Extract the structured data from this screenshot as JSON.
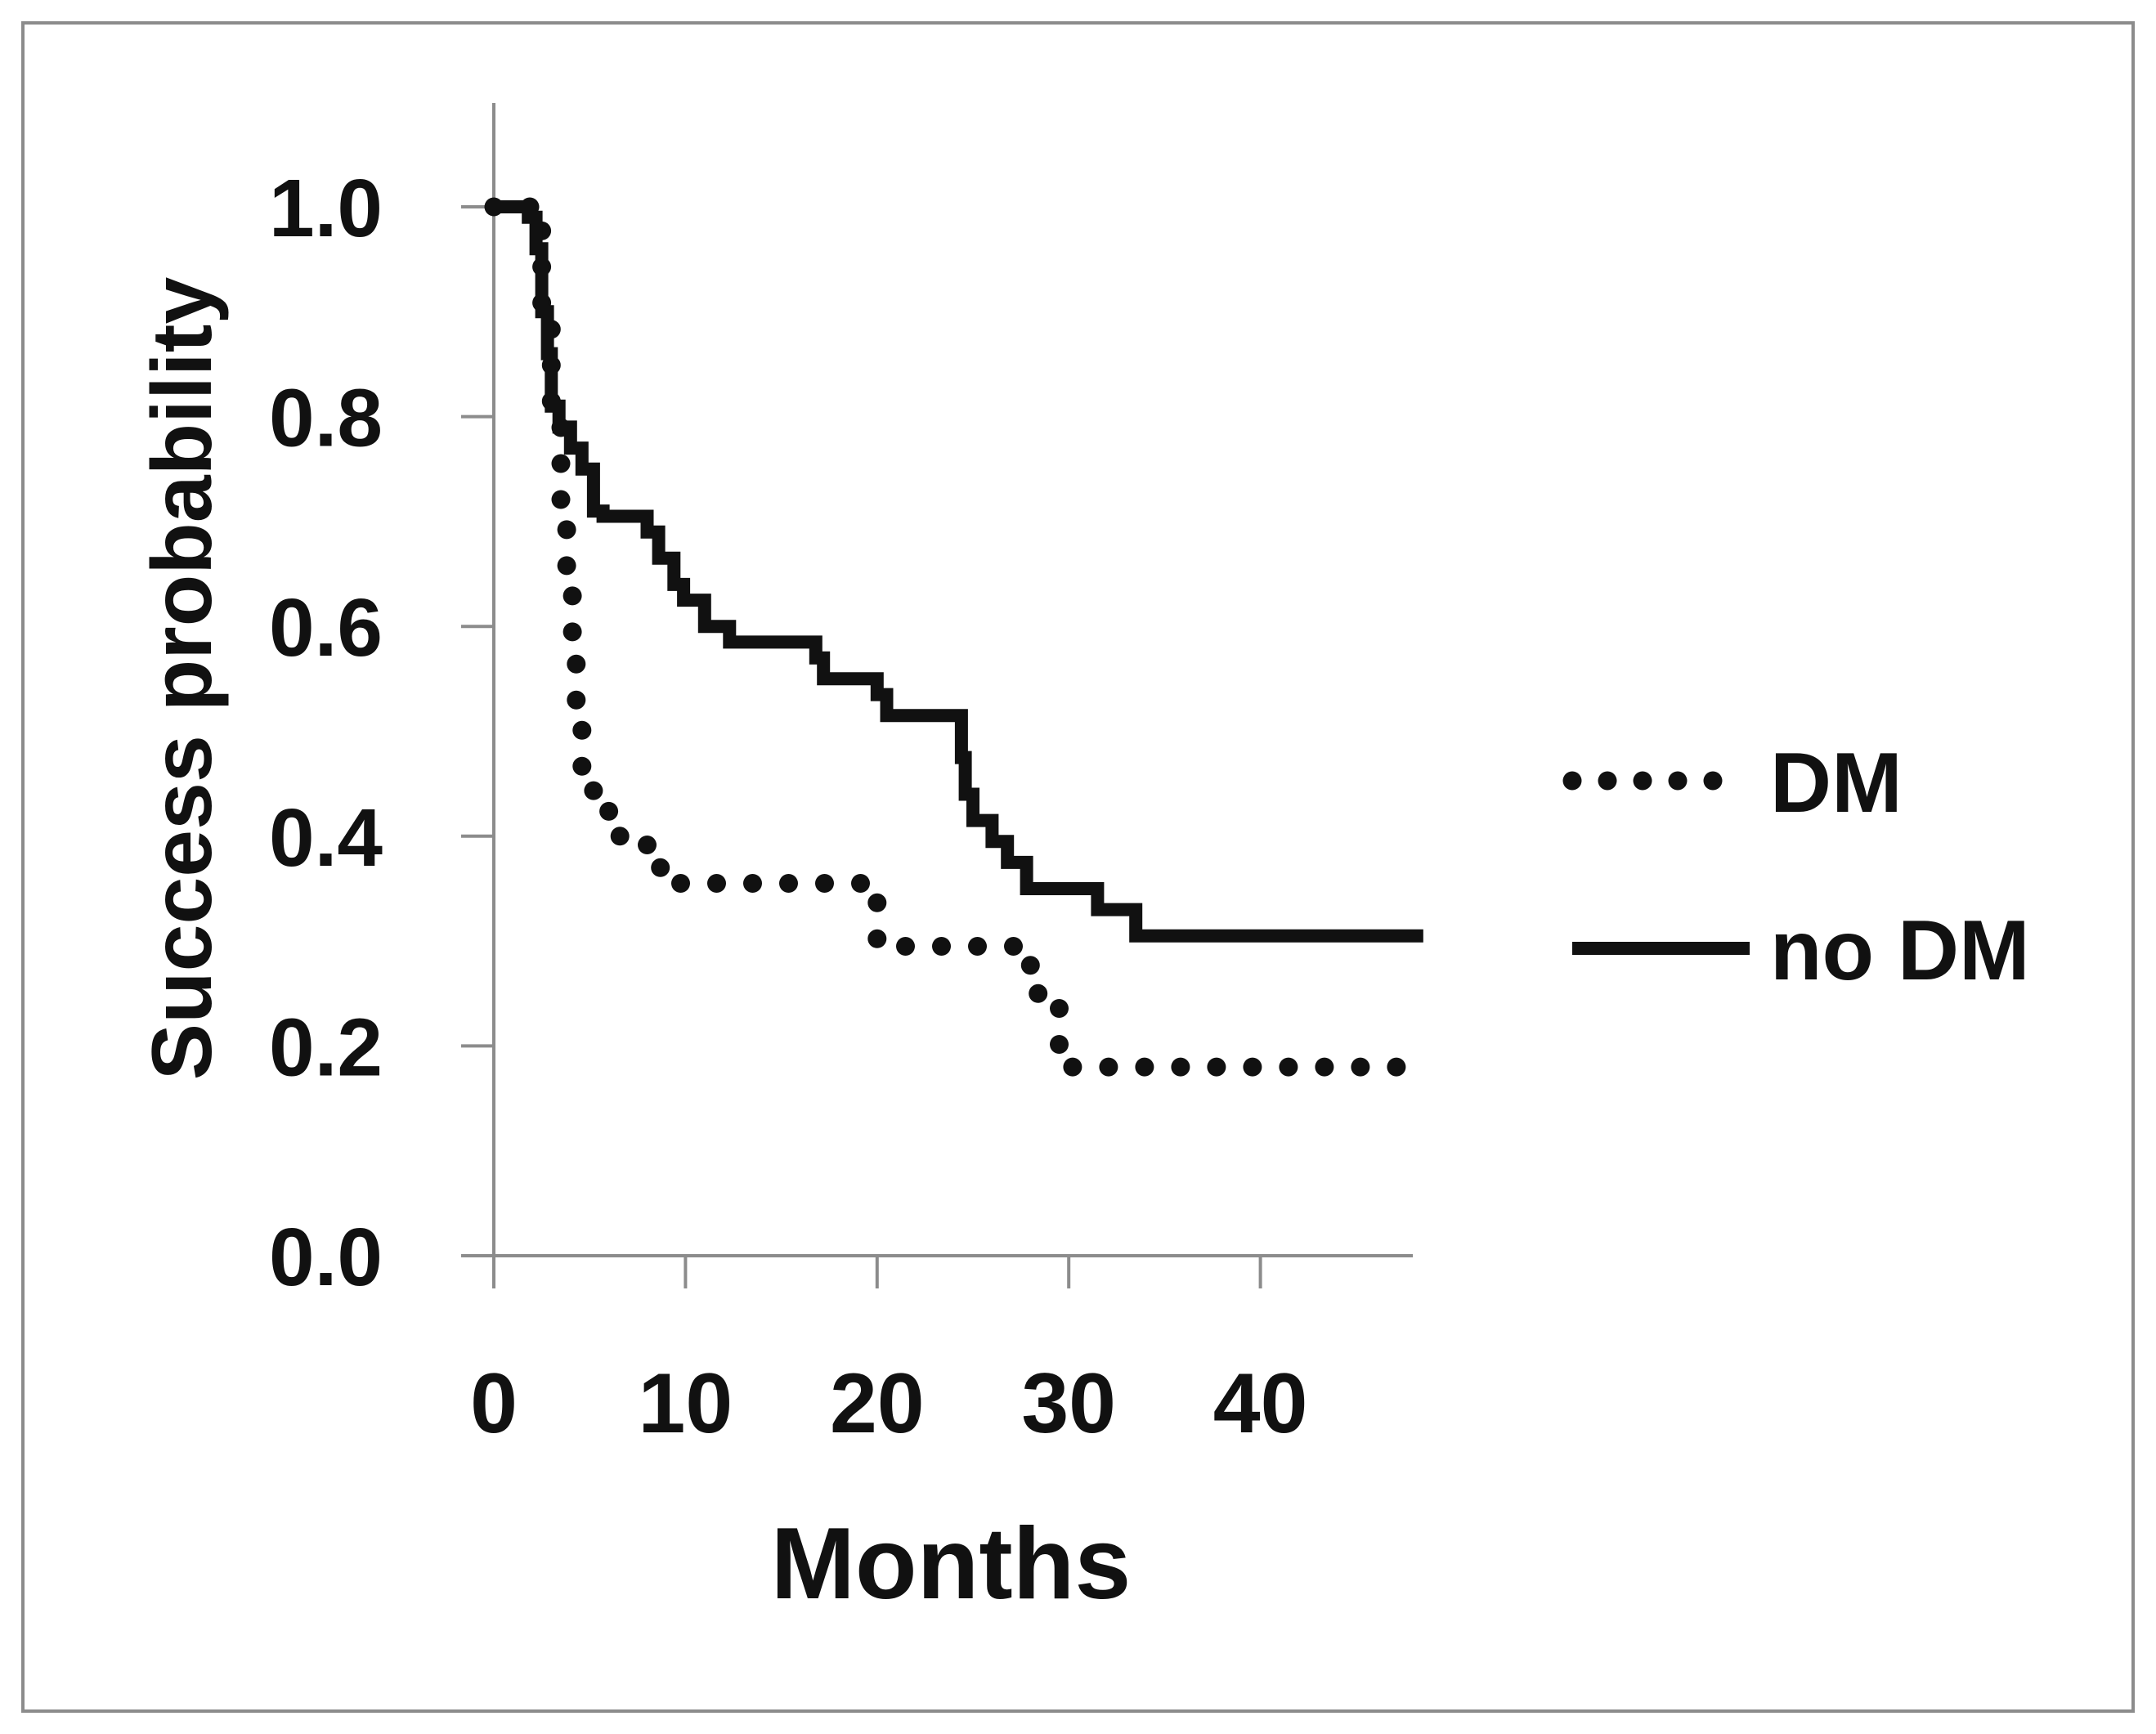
{
  "chart_data": {
    "type": "line",
    "step": true,
    "xlabel": "Months",
    "ylabel": "Success probability",
    "xlim": [
      0,
      48
    ],
    "ylim": [
      0,
      1.1
    ],
    "x_ticks": [
      0,
      10,
      20,
      30,
      40
    ],
    "x_tick_labels": [
      "0",
      "10",
      "20",
      "30",
      "40"
    ],
    "y_ticks": [
      0,
      0.2,
      0.4,
      0.6,
      0.8,
      1.0
    ],
    "y_tick_labels": [
      "0.0",
      "0.2",
      "0.4",
      "0.6",
      "0.8",
      "1.0"
    ],
    "grid": false,
    "legend": "right",
    "colors": {
      "line": "#111111",
      "axis": "#8c8c8c",
      "frame": "#8c8c8c",
      "background": "#ffffff"
    },
    "series": [
      {
        "name": "DM",
        "style": "dotted",
        "points": [
          [
            0,
            1.0
          ],
          [
            2.0,
            1.0
          ],
          [
            2.0,
            0.98
          ],
          [
            2.5,
            0.98
          ],
          [
            2.5,
            0.9
          ],
          [
            3.0,
            0.9
          ],
          [
            3.0,
            0.8
          ],
          [
            3.5,
            0.8
          ],
          [
            3.5,
            0.7
          ],
          [
            3.8,
            0.7
          ],
          [
            3.8,
            0.64
          ],
          [
            4.1,
            0.64
          ],
          [
            4.1,
            0.58
          ],
          [
            4.3,
            0.58
          ],
          [
            4.3,
            0.51
          ],
          [
            4.6,
            0.51
          ],
          [
            4.6,
            0.46
          ],
          [
            5.2,
            0.46
          ],
          [
            5.2,
            0.43
          ],
          [
            6.0,
            0.43
          ],
          [
            6.0,
            0.4
          ],
          [
            8.0,
            0.4
          ],
          [
            8.0,
            0.37
          ],
          [
            9.5,
            0.37
          ],
          [
            9.5,
            0.355
          ],
          [
            20.0,
            0.355
          ],
          [
            20.0,
            0.295
          ],
          [
            28.0,
            0.295
          ],
          [
            28.0,
            0.25
          ],
          [
            29.5,
            0.25
          ],
          [
            29.5,
            0.2
          ],
          [
            30.0,
            0.2
          ],
          [
            30.0,
            0.18
          ],
          [
            48,
            0.18
          ]
        ]
      },
      {
        "name": "no DM",
        "style": "solid",
        "points": [
          [
            0,
            1.0
          ],
          [
            1.8,
            1.0
          ],
          [
            1.8,
            0.99
          ],
          [
            2.2,
            0.99
          ],
          [
            2.2,
            0.96
          ],
          [
            2.5,
            0.96
          ],
          [
            2.5,
            0.9
          ],
          [
            2.8,
            0.9
          ],
          [
            2.8,
            0.86
          ],
          [
            3.0,
            0.86
          ],
          [
            3.0,
            0.81
          ],
          [
            3.4,
            0.81
          ],
          [
            3.4,
            0.79
          ],
          [
            4.0,
            0.79
          ],
          [
            4.0,
            0.77
          ],
          [
            4.6,
            0.77
          ],
          [
            4.6,
            0.75
          ],
          [
            5.2,
            0.75
          ],
          [
            5.2,
            0.71
          ],
          [
            5.7,
            0.71
          ],
          [
            5.7,
            0.705
          ],
          [
            8.0,
            0.705
          ],
          [
            8.0,
            0.69
          ],
          [
            8.6,
            0.69
          ],
          [
            8.6,
            0.665
          ],
          [
            9.4,
            0.665
          ],
          [
            9.4,
            0.64
          ],
          [
            9.9,
            0.64
          ],
          [
            9.9,
            0.625
          ],
          [
            11.0,
            0.625
          ],
          [
            11.0,
            0.6
          ],
          [
            12.3,
            0.6
          ],
          [
            12.3,
            0.585
          ],
          [
            16.8,
            0.585
          ],
          [
            16.8,
            0.57
          ],
          [
            17.2,
            0.57
          ],
          [
            17.2,
            0.55
          ],
          [
            20.0,
            0.55
          ],
          [
            20.0,
            0.535
          ],
          [
            20.5,
            0.535
          ],
          [
            20.5,
            0.515
          ],
          [
            24.4,
            0.515
          ],
          [
            24.4,
            0.475
          ],
          [
            24.6,
            0.475
          ],
          [
            24.6,
            0.44
          ],
          [
            25.0,
            0.44
          ],
          [
            25.0,
            0.415
          ],
          [
            26.0,
            0.415
          ],
          [
            26.0,
            0.395
          ],
          [
            26.8,
            0.395
          ],
          [
            26.8,
            0.375
          ],
          [
            27.8,
            0.375
          ],
          [
            27.8,
            0.35
          ],
          [
            31.5,
            0.35
          ],
          [
            31.5,
            0.33
          ],
          [
            33.5,
            0.33
          ],
          [
            33.5,
            0.305
          ],
          [
            48.5,
            0.305
          ]
        ]
      }
    ]
  }
}
